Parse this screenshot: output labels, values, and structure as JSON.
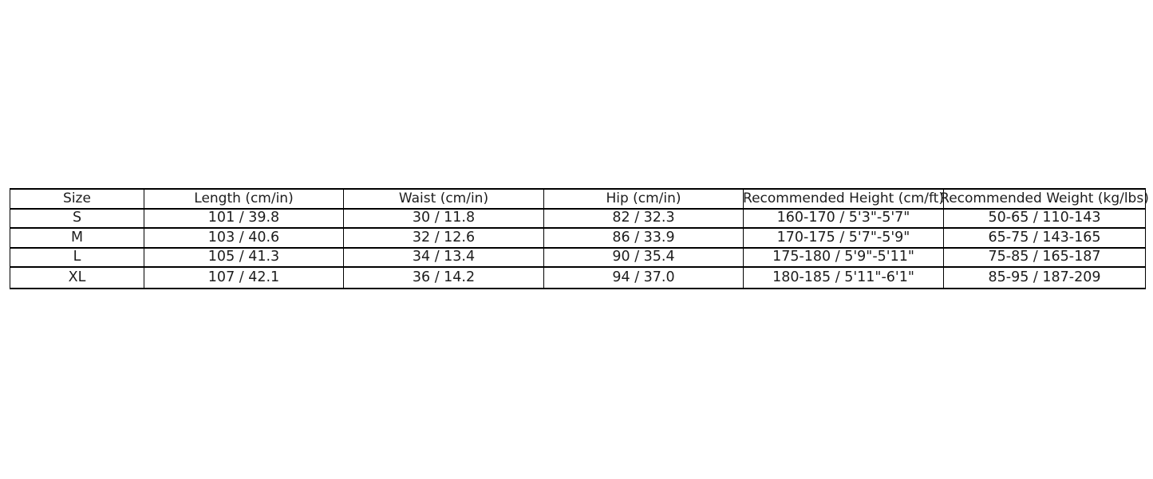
{
  "page": {
    "background": "#ffffff"
  },
  "chart_data": {
    "type": "table",
    "title": "",
    "columns": [
      "Size",
      "Length (cm/in)",
      "Waist (cm/in)",
      "Hip (cm/in)",
      "Recommended Height (cm/ft)",
      "Recommended Weight (kg/lbs)"
    ],
    "rows": [
      [
        "S",
        "101 / 39.8",
        "30 / 11.8",
        "82 / 32.3",
        "160-170 / 5'3\"-5'7\"",
        "50-65 / 110-143"
      ],
      [
        "M",
        "103 / 40.6",
        "32 / 12.6",
        "86 / 33.9",
        "170-175 / 5'7\"-5'9\"",
        "65-75 / 143-165"
      ],
      [
        "L",
        "105 / 41.3",
        "34 / 13.4",
        "90 / 35.4",
        "175-180 / 5'9\"-5'11\"",
        "75-85 / 165-187"
      ],
      [
        "XL",
        "107 / 42.1",
        "36 / 14.2",
        "94 / 37.0",
        "180-185 / 5'11\"-6'1\"",
        "85-95 / 187-209"
      ]
    ],
    "layout": {
      "border_color": "#000000",
      "text_color": "#1d1d1d",
      "cell_background": "#ffffff",
      "header_overflow": "header text of last two columns overflows cell borders"
    }
  }
}
